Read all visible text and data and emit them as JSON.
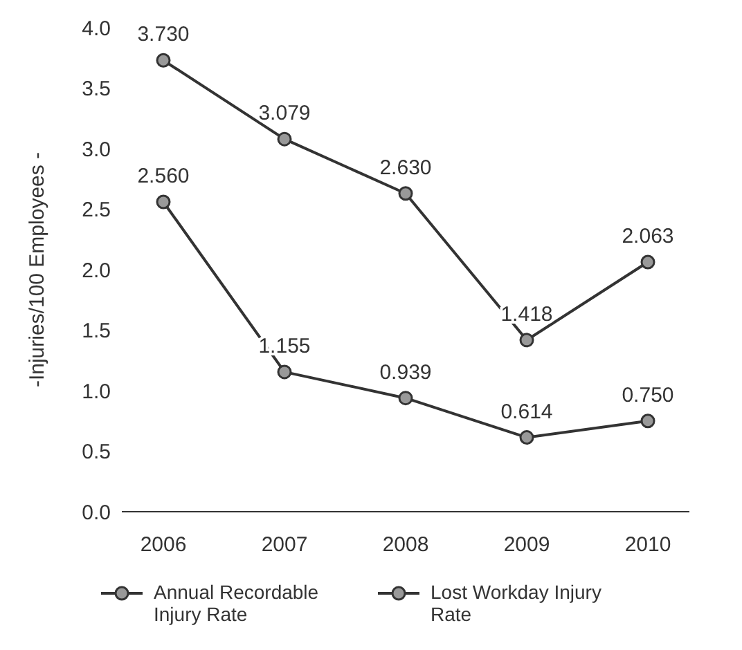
{
  "chart_data": {
    "type": "line",
    "ylabel": "-Injuries/100 Employees -",
    "categories": [
      "2006",
      "2007",
      "2008",
      "2009",
      "2010"
    ],
    "series": [
      {
        "name": "Annual Recordable Injury Rate",
        "color": "#333333",
        "values": [
          3.73,
          3.079,
          2.63,
          1.418,
          2.063
        ],
        "value_labels": [
          "3.730",
          "3.079",
          "2.630",
          "1.418",
          "2.063"
        ]
      },
      {
        "name": "Lost Workday Injury Rate",
        "color": "#333333",
        "values": [
          2.56,
          1.155,
          0.939,
          0.614,
          0.75
        ],
        "value_labels": [
          "2.560",
          "1.155",
          "0.939",
          "0.614",
          "0.750"
        ]
      }
    ],
    "ylim": [
      0,
      4
    ],
    "yticks": [
      {
        "value": 0,
        "label": "0.0"
      },
      {
        "value": 0.5,
        "label": "0.5"
      },
      {
        "value": 1,
        "label": "1.0"
      },
      {
        "value": 1.5,
        "label": "1.5"
      },
      {
        "value": 2,
        "label": "2.0"
      },
      {
        "value": 2.5,
        "label": "2.5"
      },
      {
        "value": 3,
        "label": "3.0"
      },
      {
        "value": 3.5,
        "label": "3.5"
      },
      {
        "value": 4,
        "label": "4.0"
      }
    ],
    "grid": false,
    "legend": "bottom",
    "marker": "circle",
    "line_style": "solid"
  }
}
